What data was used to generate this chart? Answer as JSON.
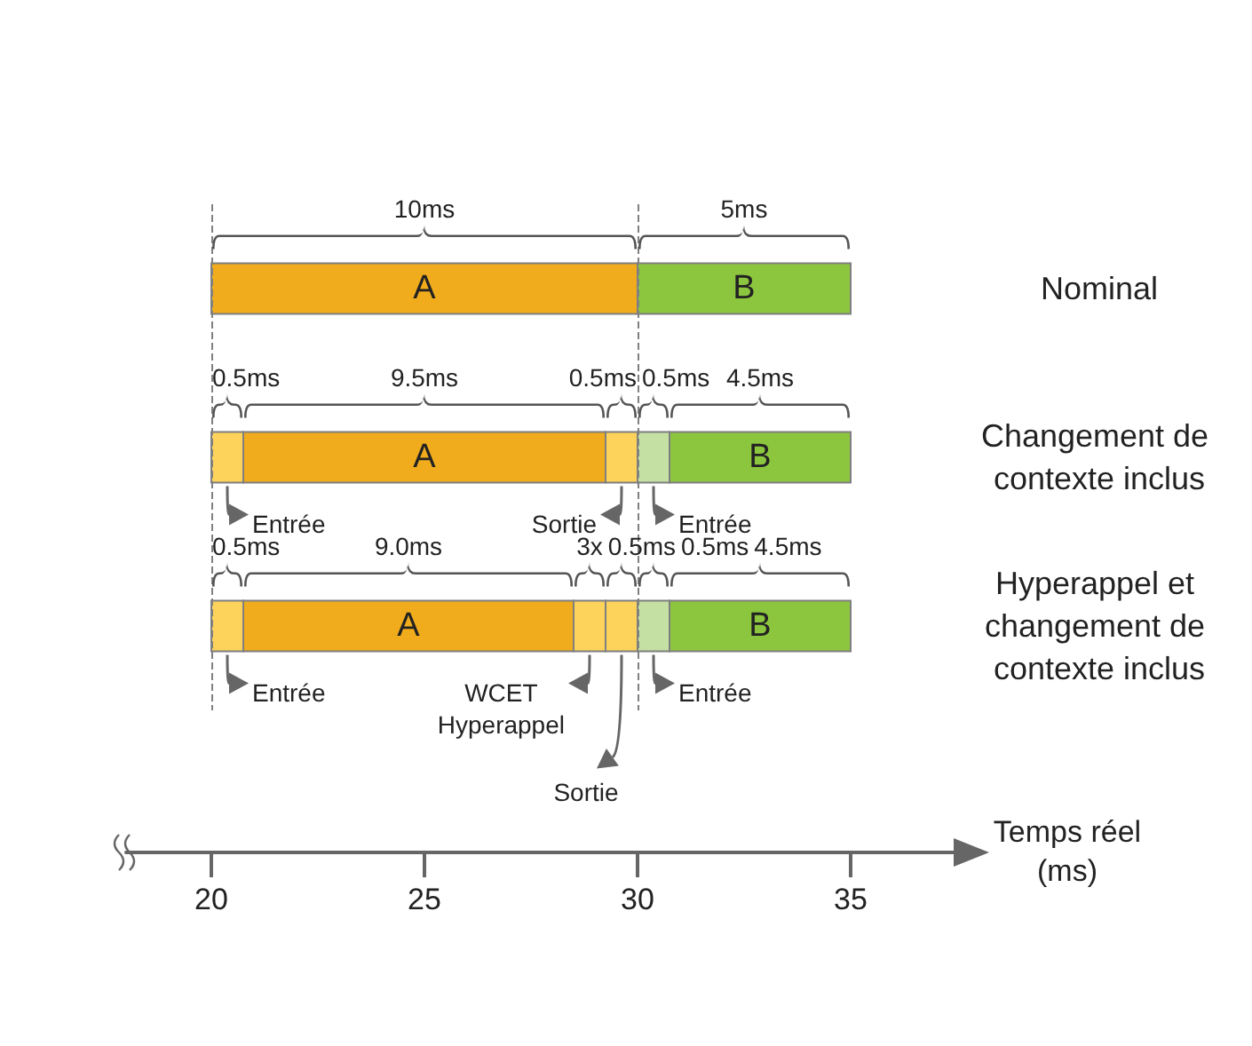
{
  "chart_data": {
    "type": "bar",
    "orientation": "horizontal",
    "categories": [
      "Nominal",
      "Changement de contexte inclus",
      "Hyperappel et changement de contexte inclus"
    ],
    "series": [
      {
        "color": "#fdd35c",
        "base": [
          null,
          20,
          20
        ],
        "values": [
          null,
          0.75,
          0.75
        ]
      },
      {
        "name": "A",
        "color": "#f0ac1c",
        "base": [
          20,
          20.75,
          20.75
        ],
        "values": [
          10,
          8.5,
          7.75
        ]
      },
      {
        "color": "#fdd35c",
        "base": [
          null,
          null,
          28.5
        ],
        "values": [
          null,
          null,
          0.75
        ]
      },
      {
        "color": "#fdd35c",
        "base": [
          null,
          29.25,
          29.25
        ],
        "values": [
          null,
          0.75,
          0.75
        ]
      },
      {
        "color": "#c4e0a2",
        "base": [
          null,
          30,
          30
        ],
        "values": [
          null,
          0.75,
          0.75
        ]
      },
      {
        "name": "B",
        "color": "#8cc63f",
        "base": [
          30,
          30.75,
          30.75
        ],
        "values": [
          5,
          4.25,
          4.25
        ]
      }
    ],
    "xlim": [
      18,
      37.5
    ],
    "xticks": [
      20,
      25,
      30,
      35
    ],
    "xlabel": "Temps réel (ms)",
    "ref_lines": [
      {
        "axis": "x",
        "value": 20,
        "line_style": "dashed",
        "color": "#808080"
      },
      {
        "axis": "x",
        "value": 30,
        "line_style": "dashed",
        "color": "#808080"
      }
    ],
    "annotations": [
      "10ms",
      "5ms",
      "0.5ms",
      "9.5ms",
      "0.5ms",
      "0.5ms",
      "4.5ms",
      "0.5ms",
      "9.0ms",
      "3x",
      "0.5ms",
      "0.5ms",
      "4.5ms",
      "Entrée",
      "Sortie",
      "Entrée",
      "Entrée",
      "WCET\nHyperappel",
      "Sortie",
      "Entrée"
    ]
  }
}
